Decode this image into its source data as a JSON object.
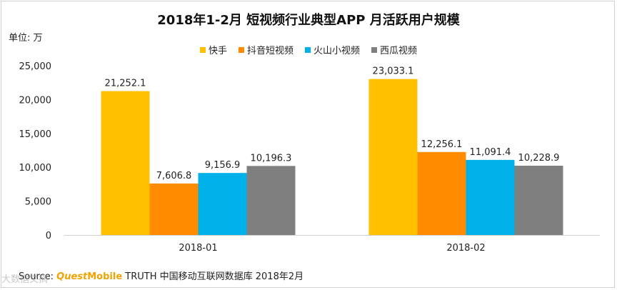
{
  "chart_data": {
    "type": "bar",
    "title": "2018年1-2月 短视频行业典型APP 月活跃用户规模",
    "unit_label": "单位: 万",
    "categories": [
      "2018-01",
      "2018-02"
    ],
    "series": [
      {
        "name": "快手",
        "color": "#ffc000",
        "values": [
          21252.1,
          23033.1
        ],
        "labels": [
          "21,252.1",
          "23,033.1"
        ]
      },
      {
        "name": "抖音短视频",
        "color": "#ff8c00",
        "values": [
          7606.8,
          12256.1
        ],
        "labels": [
          "7,606.8",
          "12,256.1"
        ]
      },
      {
        "name": "火山小视频",
        "color": "#00b0e8",
        "values": [
          9156.9,
          11091.4
        ],
        "labels": [
          "9,156.9",
          "11,091.4"
        ]
      },
      {
        "name": "西瓜视频",
        "color": "#7f7f7f",
        "values": [
          10196.3,
          10228.9
        ],
        "labels": [
          "10,196.3",
          "10,228.9"
        ]
      }
    ],
    "ylim": [
      0,
      25000
    ],
    "y_ticks": [
      0,
      5000,
      10000,
      15000,
      20000,
      25000
    ],
    "y_tick_labels": [
      "0",
      "5,000",
      "10,000",
      "15,000",
      "20,000",
      "25,000"
    ],
    "grid": false,
    "legend_position": "top"
  },
  "source": {
    "label": "Source:",
    "brand_prefix": "Quest",
    "brand_suffix": "Mobile",
    "text": "TRUTH 中国移动互联网数据库 2018年2月"
  },
  "watermark": "大数据文摘"
}
